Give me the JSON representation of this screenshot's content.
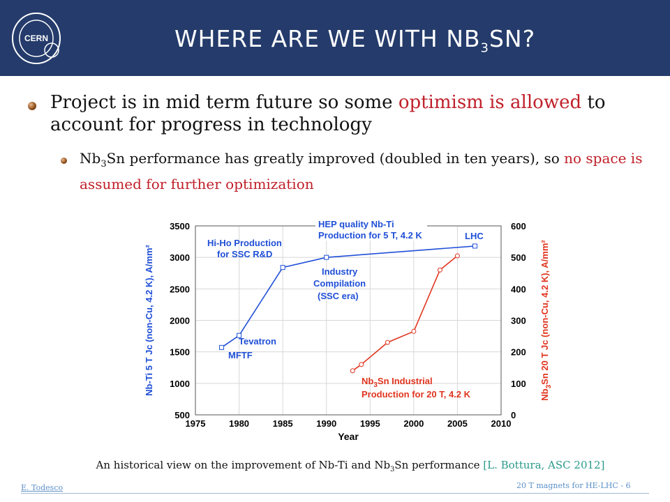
{
  "slide": {
    "logo_text": "CERN",
    "title_prefix": "WHERE ARE WE WITH NB",
    "title_sub": "3",
    "title_suffix": "SN?",
    "bullet1_pre": "Project is in mid term future so some ",
    "bullet1_red": "optimism is allowed",
    "bullet1_post": " to account for progress in technology",
    "bullet2_nb": "Nb",
    "bullet2_sub": "3",
    "bullet2_post": "Sn performance has greatly improved (doubled in ten years), so ",
    "bullet2_red": "no space is assumed for further optimization",
    "caption_pre": "An historical view on the improvement of Nb-Ti and Nb",
    "caption_sub": "3",
    "caption_post": "Sn performance ",
    "caption_cite": "[L. Bottura, ASC 2012]",
    "footer_left": "E. Todesco",
    "footer_right": "20 T magnets for HE-LHC - 6",
    "colors": {
      "header": "#243b6b",
      "accent_red": "#c0202a",
      "nbti": "#1f4fd6",
      "nb3sn": "#e0351f"
    }
  },
  "chart_data": {
    "type": "line",
    "xlabel": "Year",
    "x_ticks": [
      1975,
      1980,
      1985,
      1990,
      1995,
      2000,
      2005,
      2010
    ],
    "xlim": [
      1975,
      2010
    ],
    "y_left": {
      "label": "Nb-Ti 5 T Jc (non-Cu, 4.2 K), A/mm²",
      "ticks": [
        500,
        1000,
        1500,
        2000,
        2500,
        3000,
        3500
      ],
      "lim": [
        500,
        3500
      ]
    },
    "y_right": {
      "label_pre": "Nb",
      "label_sub": "3",
      "label_post": "Sn 20 T Jc (non-Cu, 4.2 K), A/mm²",
      "ticks": [
        0,
        100,
        200,
        300,
        400,
        500,
        600
      ],
      "lim": [
        0,
        600
      ]
    },
    "series": [
      {
        "axis": "left",
        "color": "#1f4fd6",
        "x": [
          1978,
          1980,
          1985,
          1990,
          2007
        ],
        "y": [
          1570,
          1760,
          2840,
          3000,
          3180
        ]
      },
      {
        "axis": "right",
        "color": "#e0351f",
        "x": [
          1993,
          1994,
          1997,
          2000,
          2003,
          2005
        ],
        "y": [
          140,
          160,
          230,
          265,
          460,
          505
        ]
      }
    ],
    "annotations": {
      "hiho_1": "Hi-Ho Production",
      "hiho_2": "for SSC R&D",
      "hep_1": "HEP quality Nb-Ti",
      "hep_2": "Production for 5 T, 4.2 K",
      "lhc": "LHC",
      "ind_1": "Industry",
      "ind_2": "Compilation",
      "ind_3": "(SSC era)",
      "tevatron": "Tevatron",
      "mftf": "MFTF",
      "nb3sn_1_pre": "Nb",
      "nb3sn_1_sub": "3",
      "nb3sn_1_post": "Sn Industrial",
      "nb3sn_2": "Production for 20 T, 4.2 K"
    }
  }
}
